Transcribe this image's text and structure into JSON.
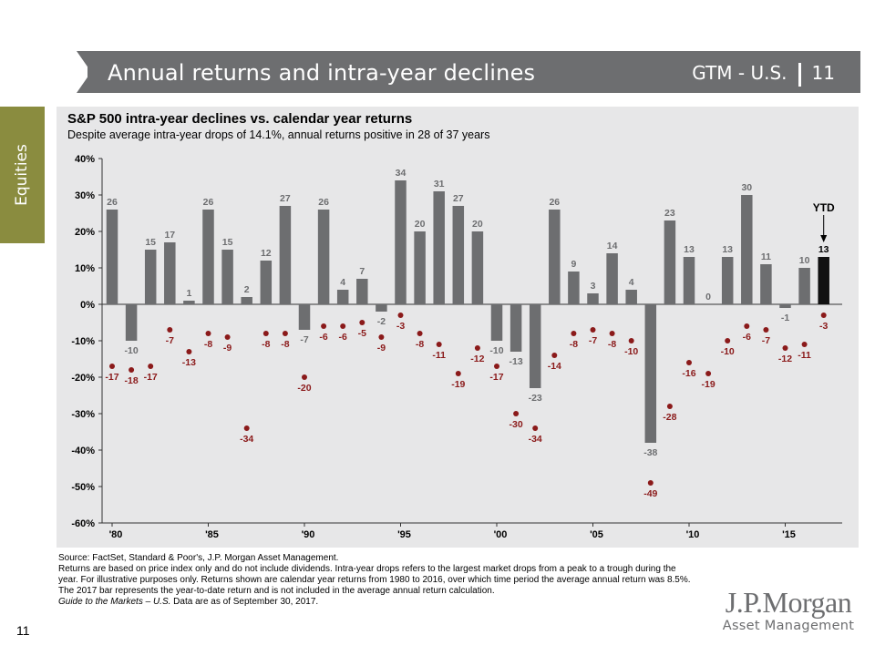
{
  "header": {
    "title": "Annual returns and intra-year declines",
    "guide": "GTM - U.S.",
    "page": "11",
    "accent_color": "#7a3b2e",
    "bar_color": "#6d6e70"
  },
  "side_tab": {
    "label": "Equities",
    "color": "#8a8c3f"
  },
  "chart_data": {
    "type": "bar",
    "title": "S&P 500 intra-year declines vs. calendar year returns",
    "subtitle": "Despite average intra-year drops of 14.1%, annual returns positive in 28 of 37 years",
    "years": [
      1980,
      1981,
      1982,
      1983,
      1984,
      1985,
      1986,
      1987,
      1988,
      1989,
      1990,
      1991,
      1992,
      1993,
      1994,
      1995,
      1996,
      1997,
      1998,
      1999,
      2000,
      2001,
      2002,
      2003,
      2004,
      2005,
      2006,
      2007,
      2008,
      2009,
      2010,
      2011,
      2012,
      2013,
      2014,
      2015,
      2016,
      2017
    ],
    "series": [
      {
        "name": "",
        "mark": "bar",
        "color": "#6d6e70",
        "highlight_color": "#111111",
        "values": [
          26,
          -10,
          15,
          17,
          1,
          26,
          15,
          2,
          12,
          27,
          -7,
          26,
          4,
          7,
          -2,
          34,
          20,
          31,
          27,
          20,
          -10,
          -13,
          -23,
          26,
          9,
          3,
          14,
          4,
          -38,
          23,
          13,
          0,
          13,
          30,
          11,
          -1,
          10,
          13
        ]
      },
      {
        "name": "",
        "mark": "dot",
        "color": "#8b1a1a",
        "values": [
          -17,
          -18,
          -17,
          -7,
          -13,
          -8,
          -9,
          -34,
          -8,
          -8,
          -20,
          -6,
          -6,
          -5,
          -9,
          -3,
          -8,
          -11,
          -19,
          -12,
          -17,
          -30,
          -34,
          -14,
          -8,
          -7,
          -8,
          -10,
          -49,
          -28,
          -16,
          -19,
          -10,
          -6,
          -7,
          -12,
          -11,
          -3
        ]
      }
    ],
    "ylim": [
      -60,
      40
    ],
    "yticks": [
      "-60%",
      "-50%",
      "-40%",
      "-30%",
      "-20%",
      "-10%",
      "0%",
      "10%",
      "20%",
      "30%",
      "40%"
    ],
    "xtick_labels": [
      "'80",
      "'85",
      "'90",
      "'95",
      "'00",
      "'05",
      "'10",
      "'15"
    ],
    "xtick_years": [
      1980,
      1985,
      1990,
      1995,
      2000,
      2005,
      2010,
      2015
    ],
    "annotation": "YTD",
    "grid": false
  },
  "footnotes": {
    "source": "Source: FactSet, Standard & Poor's, J.P. Morgan Asset Management.",
    "body": "Returns are based on price index only and do not include dividends. Intra-year drops refers to the largest market drops from a peak to a trough during the year. For illustrative purposes only. Returns shown are calendar year returns from 1980 to 2016, over which time period the average annual return was 8.5%. The 2017 bar represents the year-to-date return and is not included in the average annual return calculation.",
    "guide_italic": "Guide to the Markets – U.S.",
    "guide_rest": " Data are as of September 30, 2017."
  },
  "page_number": "11",
  "brand": {
    "name": "J.P.Morgan",
    "sub": "Asset Management"
  }
}
